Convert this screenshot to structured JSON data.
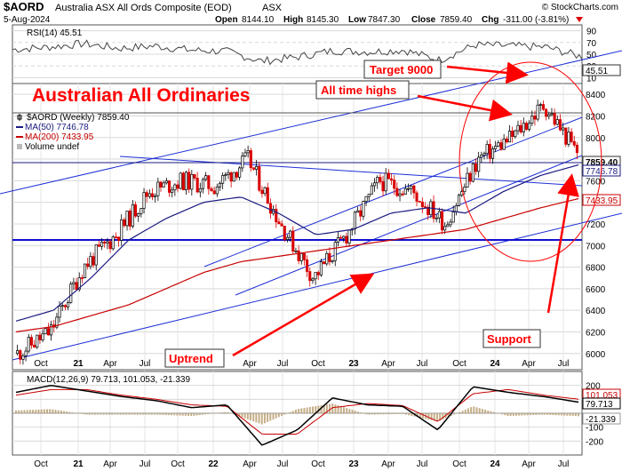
{
  "header": {
    "symbol": "$AORD",
    "name": "Australia ASX All Ords Composite (EOD)",
    "exchange": "ASX",
    "source": "© StockCharts.com",
    "date": "5-Aug-2024",
    "open_label": "Open",
    "open": "8144.10",
    "high_label": "High",
    "high": "8145.30",
    "low_label": "Low",
    "low": "7847.30",
    "close_label": "Close",
    "close": "7859.40",
    "chg_label": "Chg",
    "chg": "-311.00 (-3.81%)"
  },
  "annotations": {
    "title": "Australian All Ordinaries",
    "target": "Target 9000",
    "ath": "All time highs",
    "support": "Support",
    "uptrend": "Uptrend"
  },
  "colors": {
    "up": "#000000",
    "down": "#d90000",
    "ma50": "#1a1a80",
    "ma200": "#c80000",
    "trend": "#1e2fd6",
    "annotation": "#ff0000",
    "grid": "#d8d8d8",
    "frame": "#555555"
  },
  "chart_data": [
    {
      "type": "line",
      "panel": "RSI",
      "legend": "RSI(14) 45.51",
      "ylim": [
        0,
        100
      ],
      "yticks": [
        10,
        30,
        50,
        70,
        90
      ],
      "value_label": "45.51",
      "x": [
        "2020-09",
        "2020-12",
        "2021-03",
        "2021-06",
        "2021-09",
        "2021-12",
        "2022-03",
        "2022-06",
        "2022-09",
        "2022-12",
        "2023-03",
        "2023-06",
        "2023-09",
        "2023-12",
        "2024-03",
        "2024-06",
        "2024-08"
      ],
      "values": [
        58,
        62,
        68,
        60,
        64,
        57,
        55,
        38,
        45,
        56,
        54,
        57,
        40,
        66,
        64,
        62,
        45.5
      ]
    },
    {
      "type": "bar",
      "subtype": "candlestick",
      "panel": "price",
      "legend": "$AORD (Weekly) 7859.40",
      "ylim": [
        5850,
        8500
      ],
      "yticks": [
        6000,
        6200,
        6400,
        6600,
        6800,
        7000,
        7200,
        7400,
        7600,
        7800,
        8000,
        8200,
        8400
      ],
      "xticks": [
        "Oct",
        "21",
        "Apr",
        "Jul",
        "Oct",
        "22",
        "Apr",
        "Jul",
        "Oct",
        "23",
        "Apr",
        "Jul",
        "Oct",
        "24",
        "Apr",
        "Jul"
      ],
      "price_labels": [
        "7859.40",
        "7746.78",
        "7433.95"
      ],
      "series": [
        {
          "name": "MA(50) 7746.78",
          "values": [
            6300,
            6400,
            6700,
            7050,
            7250,
            7400,
            7450,
            7300,
            7100,
            7150,
            7300,
            7350,
            7300,
            7500,
            7650,
            7746.78
          ]
        },
        {
          "name": "MA(200) 7433.95",
          "values": [
            6200,
            6250,
            6350,
            6450,
            6600,
            6750,
            6850,
            6900,
            6950,
            7000,
            7050,
            7100,
            7150,
            7250,
            7350,
            7433.95
          ]
        },
        {
          "name": "Volume undef",
          "values": []
        }
      ],
      "close": [
        6000,
        6200,
        6800,
        7100,
        7500,
        7600,
        7550,
        7800,
        7200,
        6700,
        7100,
        7600,
        7500,
        7200,
        7800,
        8000,
        8300,
        7859.4
      ]
    },
    {
      "type": "line",
      "panel": "MACD",
      "legend": "MACD(12,26,9) 79.713, 101.053, -21.339",
      "ylim": [
        -300,
        300
      ],
      "yticks": [
        200,
        100,
        -100,
        -200
      ],
      "value_labels": [
        "101.053",
        "79.713",
        "-21.339"
      ],
      "x": [
        "2020-09",
        "2020-12",
        "2021-03",
        "2021-06",
        "2021-09",
        "2021-12",
        "2022-03",
        "2022-06",
        "2022-09",
        "2022-12",
        "2023-03",
        "2023-06",
        "2023-09",
        "2023-12",
        "2024-03",
        "2024-06",
        "2024-08"
      ],
      "series": [
        {
          "name": "MACD",
          "values": [
            150,
            200,
            160,
            120,
            90,
            40,
            60,
            -230,
            -120,
            110,
            60,
            50,
            -120,
            190,
            150,
            120,
            80
          ]
        },
        {
          "name": "Signal",
          "values": [
            130,
            170,
            170,
            130,
            100,
            60,
            50,
            -150,
            -150,
            40,
            70,
            55,
            -60,
            140,
            170,
            130,
            101
          ]
        },
        {
          "name": "Histogram",
          "values": [
            20,
            30,
            -10,
            -10,
            -10,
            -20,
            10,
            -80,
            30,
            70,
            -10,
            -5,
            -60,
            50,
            -20,
            -10,
            -21.3
          ]
        }
      ]
    }
  ]
}
